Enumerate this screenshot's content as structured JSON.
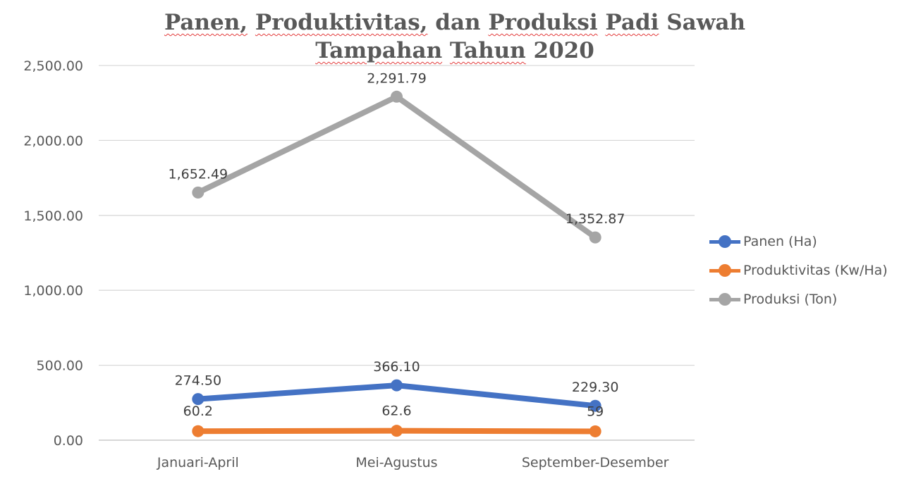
{
  "chart_data": {
    "type": "line",
    "title_line1": [
      "Panen,",
      "Produktivitas,",
      "dan",
      "Produksi",
      "Padi",
      "Sawah"
    ],
    "title_line2": [
      "Tampahan",
      "Tahun",
      "2020"
    ],
    "title_squiggle": [
      true,
      true,
      false,
      true,
      true,
      false,
      true,
      true,
      false
    ],
    "categories": [
      "Januari-April",
      "Mei-Agustus",
      "September-Desember"
    ],
    "ylim": [
      0,
      2500
    ],
    "yticks": [
      "0.00",
      "500.00",
      "1,000.00",
      "1,500.00",
      "2,000.00",
      "2,500.00"
    ],
    "ytick_values": [
      0,
      500,
      1000,
      1500,
      2000,
      2500
    ],
    "grid": true,
    "legend_position": "right",
    "series": [
      {
        "name": "Panen (Ha)",
        "color": "#4472c4",
        "values": [
          274.5,
          366.1,
          229.3
        ],
        "labels": [
          "274.50",
          "366.10",
          "229.30"
        ]
      },
      {
        "name": "Produktivitas (Kw/Ha)",
        "color": "#ed7d31",
        "values": [
          60.2,
          62.6,
          59
        ],
        "labels": [
          "60.2",
          "62.6",
          "59"
        ]
      },
      {
        "name": "Produksi (Ton)",
        "color": "#a5a5a5",
        "values": [
          1652.49,
          2291.79,
          1352.87
        ],
        "labels": [
          "1,652.49",
          "2,291.79",
          "1,352.87"
        ]
      }
    ]
  }
}
